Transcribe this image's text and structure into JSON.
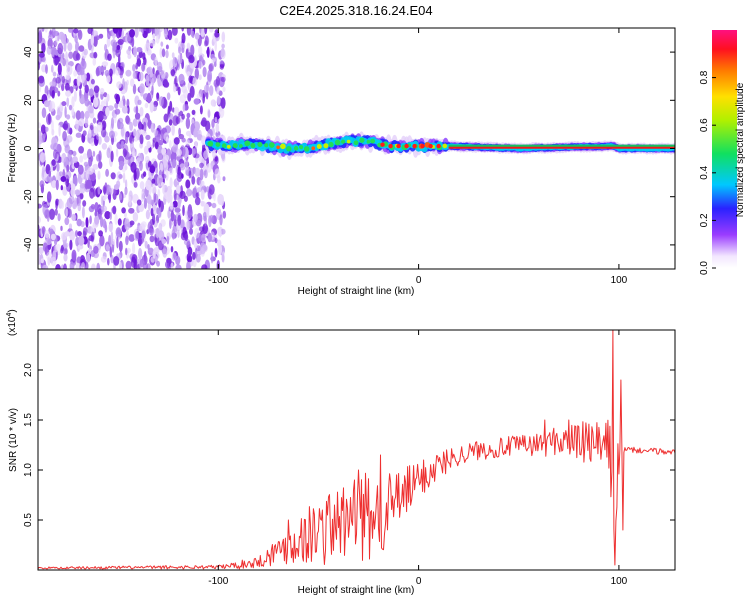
{
  "title": "C2E4.2025.318.16.24.E04",
  "chart_data": [
    {
      "type": "heatmap",
      "name": "spectrogram",
      "xlabel": "Height of straight line (km)",
      "ylabel": "Frequency (Hz)",
      "xlim": [
        -190,
        128
      ],
      "ylim": [
        -50,
        50
      ],
      "xticks": [
        -100,
        0,
        100
      ],
      "xtick_labels": [
        "-100",
        "0",
        "100"
      ],
      "yticks": [
        -40,
        -20,
        0,
        20,
        40
      ],
      "ytick_labels": [
        "-40",
        "-20",
        "0",
        "20",
        "40"
      ],
      "noise_region_x": [
        -190,
        -97
      ],
      "ridge": {
        "x": [
          -105,
          -95,
          -85,
          -75,
          -65,
          -55,
          -45,
          -35,
          -25,
          -15,
          -5,
          5,
          15,
          50,
          97,
          100,
          128
        ],
        "y": [
          2,
          1,
          2,
          1,
          0,
          0,
          2,
          3,
          3,
          1,
          1,
          1,
          1,
          0,
          1,
          0,
          0
        ]
      },
      "colorbar": {
        "label": "Normalized spectral amplitude",
        "range": [
          0,
          1
        ],
        "ticks": [
          0.0,
          0.2,
          0.4,
          0.6,
          0.8
        ],
        "tick_labels": [
          "0.0",
          "0.2",
          "0.4",
          "0.6",
          "0.8"
        ]
      }
    },
    {
      "type": "line",
      "name": "snr",
      "xlabel": "Height of straight line (km)",
      "ylabel": "SNR (10 * v/v)",
      "scale_label": "(x10",
      "scale_exponent": "4",
      "xlim": [
        -190,
        128
      ],
      "ylim": [
        0,
        2.4
      ],
      "xticks": [
        -100,
        0,
        100
      ],
      "xtick_labels": [
        "-100",
        "0",
        "100"
      ],
      "yticks": [
        0.5,
        1.0,
        1.5,
        2.0
      ],
      "ytick_labels": [
        "0.5",
        "1.0",
        "1.5",
        "2.0"
      ],
      "series": [
        {
          "name": "SNR",
          "color": "#ee3030",
          "envelope_x": [
            -190,
            -100,
            -90,
            -80,
            -70,
            -60,
            -50,
            -40,
            -30,
            -20,
            -10,
            0,
            10,
            20,
            30,
            40,
            50,
            60,
            70,
            80,
            90,
            95,
            98,
            100,
            102,
            105,
            128
          ],
          "envelope_mean": [
            0.02,
            0.03,
            0.05,
            0.08,
            0.2,
            0.3,
            0.4,
            0.45,
            0.5,
            0.55,
            0.7,
            0.9,
            1.05,
            1.15,
            1.2,
            1.22,
            1.25,
            1.25,
            1.3,
            1.28,
            1.25,
            1.2,
            0.8,
            1.1,
            1.2,
            1.2,
            1.18
          ],
          "envelope_amp": [
            0.01,
            0.02,
            0.04,
            0.06,
            0.15,
            0.25,
            0.35,
            0.4,
            0.45,
            0.45,
            0.3,
            0.2,
            0.15,
            0.1,
            0.1,
            0.1,
            0.1,
            0.12,
            0.15,
            0.2,
            0.25,
            0.3,
            0.6,
            0.2,
            0.03,
            0.03,
            0.03
          ],
          "spikes": [
            {
              "x": -65,
              "y": 0.5
            },
            {
              "x": -48,
              "y": 0.6
            },
            {
              "x": -42,
              "y": 0.65
            },
            {
              "x": -32,
              "y": 0.9
            },
            {
              "x": -30,
              "y": 1.0
            },
            {
              "x": -19,
              "y": 1.15
            },
            {
              "x": -12,
              "y": 0.7
            },
            {
              "x": 63,
              "y": 1.5
            },
            {
              "x": 75,
              "y": 1.5
            },
            {
              "x": 97,
              "y": 2.4
            },
            {
              "x": 98,
              "y": 0.05
            },
            {
              "x": 101,
              "y": 1.9
            },
            {
              "x": 102,
              "y": 0.4
            }
          ]
        }
      ]
    }
  ]
}
